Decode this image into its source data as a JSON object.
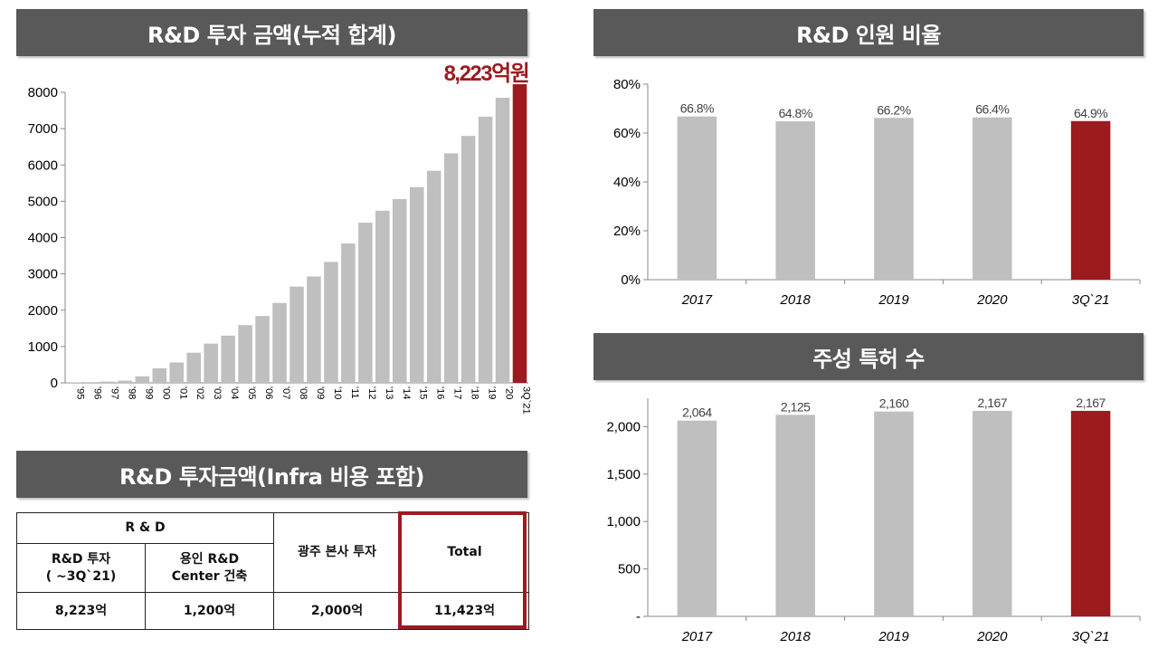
{
  "colors": {
    "bar": "#bfbfbf",
    "highlight": "#9b1b1f",
    "banner": "#595959"
  },
  "banners": {
    "investment": "R&D 투자 금액(누적 합계)",
    "personnel": "R&D 인원 비율",
    "patents": "주성 특허 수",
    "infra": "R&D 투자금액(Infra 비용 포함)"
  },
  "chart_data": [
    {
      "type": "bar",
      "categories": [
        "'95",
        "'96",
        "'97",
        "'98",
        "'99",
        "'00",
        "'01",
        "'02",
        "'03",
        "'04",
        "'05",
        "'06",
        "'07",
        "'08",
        "'09",
        "'10",
        "'11",
        "'12",
        "'13",
        "'14",
        "'15",
        "'16",
        "'17",
        "'18",
        "'19",
        "'20",
        "3Q`21"
      ],
      "values": [
        10,
        20,
        35,
        60,
        180,
        400,
        560,
        830,
        1080,
        1300,
        1590,
        1840,
        2200,
        2650,
        2930,
        3330,
        3840,
        4410,
        4740,
        5060,
        5390,
        5840,
        6320,
        6800,
        7330,
        7850,
        8223
      ],
      "ylim": [
        0,
        8000
      ],
      "yticks": [
        "0",
        "1000",
        "2000",
        "3000",
        "4000",
        "5000",
        "6000",
        "7000",
        "8000"
      ],
      "grid": false,
      "highlight_index": 26,
      "highlight_label": "8,223억원"
    },
    {
      "type": "bar",
      "categories": [
        "2017",
        "2018",
        "2019",
        "2020",
        "3Q`21"
      ],
      "values": [
        66.8,
        64.8,
        66.2,
        66.4,
        64.9
      ],
      "labels": [
        "66.8%",
        "64.8%",
        "66.2%",
        "66.4%",
        "64.9%"
      ],
      "ylim": [
        0,
        80
      ],
      "yticks": [
        "0%",
        "20%",
        "40%",
        "60%",
        "80%"
      ],
      "grid": false,
      "highlight_index": 4
    },
    {
      "type": "bar",
      "categories": [
        "2017",
        "2018",
        "2019",
        "2020",
        "3Q`21"
      ],
      "values": [
        2064,
        2125,
        2160,
        2167,
        2167
      ],
      "labels": [
        "2,064",
        "2,125",
        "2,160",
        "2,167",
        "2,167"
      ],
      "ylim": [
        0,
        2300
      ],
      "yticks": [
        "-",
        "500",
        "1,000",
        "1,500",
        "2,000"
      ],
      "grid": false,
      "highlight_index": 4
    }
  ],
  "table": {
    "group_header": "R & D",
    "col1_line1": "R&D 투자",
    "col1_line2": "( ~3Q`21)",
    "col2_line1": "용인 R&D",
    "col2_line2": "Center 건축",
    "col3_header": "광주 본사 투자",
    "col4_header": "Total",
    "values": [
      "8,223억",
      "1,200억",
      "2,000억",
      "11,423억"
    ]
  }
}
